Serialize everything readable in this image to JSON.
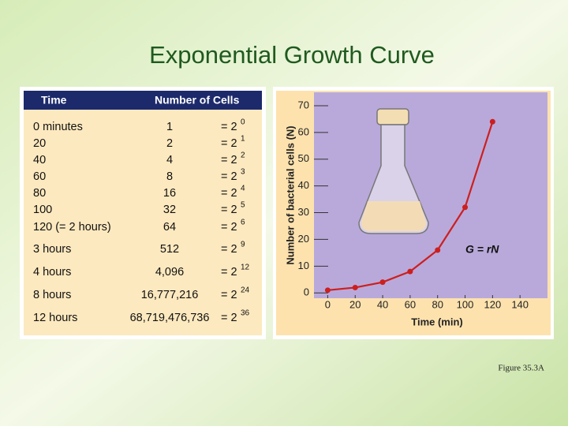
{
  "title": "Exponential Growth Curve",
  "table": {
    "header": [
      "Time",
      "Number of Cells"
    ],
    "rows": [
      {
        "time": "0 minutes",
        "cells": "1",
        "power": "= 2",
        "exponent": "0"
      },
      {
        "time": "20",
        "cells": "2",
        "power": "= 2",
        "exponent": "1"
      },
      {
        "time": "40",
        "cells": "4",
        "power": "= 2",
        "exponent": "2"
      },
      {
        "time": "60",
        "cells": "8",
        "power": "= 2",
        "exponent": "3"
      },
      {
        "time": "80",
        "cells": "16",
        "power": "= 2",
        "exponent": "4"
      },
      {
        "time": "100",
        "cells": "32",
        "power": "= 2",
        "exponent": "5"
      },
      {
        "time": "120 (= 2 hours)",
        "cells": "64",
        "power": "= 2",
        "exponent": "6"
      },
      {
        "time": "3 hours",
        "cells": "512",
        "power": "= 2",
        "exponent": "9"
      },
      {
        "time": "4 hours",
        "cells": "4,096",
        "power": "= 2",
        "exponent": "12"
      },
      {
        "time": "8 hours",
        "cells": "16,777,216",
        "power": "= 2",
        "exponent": "24"
      },
      {
        "time": "12 hours",
        "cells": "68,719,476,736",
        "power": "= 2",
        "exponent": "36"
      }
    ]
  },
  "chart_data": {
    "type": "line",
    "x": [
      0,
      20,
      40,
      60,
      80,
      100,
      120
    ],
    "values": [
      1,
      2,
      4,
      8,
      16,
      32,
      64
    ],
    "color": "#cc1f1f",
    "xlabel": "Time (min)",
    "ylabel": "Number of bacterial cells (N)",
    "annotation": "G = rN",
    "xlim": [
      -10,
      160
    ],
    "ylim": [
      -2,
      75
    ],
    "xticks": [
      0,
      20,
      40,
      60,
      80,
      100,
      120,
      140
    ],
    "yticks": [
      0,
      10,
      20,
      30,
      40,
      50,
      60,
      70
    ]
  },
  "caption": "Figure 35.3A"
}
